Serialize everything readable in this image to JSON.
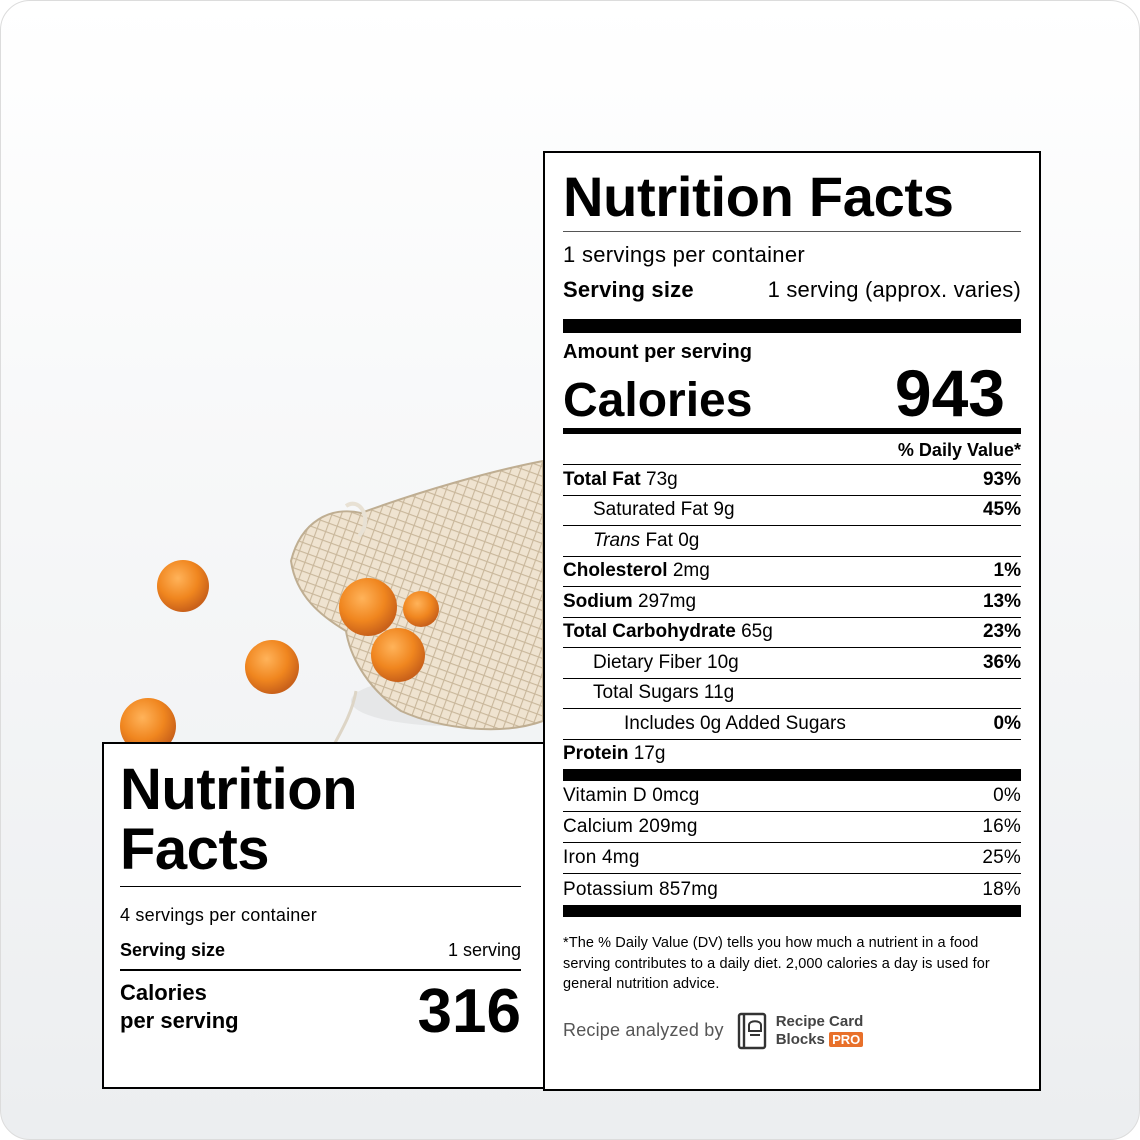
{
  "small_label": {
    "title": "Nutrition Facts",
    "servings_per_container": "4 servings per container",
    "serving_size_label": "Serving size",
    "serving_size_value": "1 serving",
    "calories_label_1": "Calories",
    "calories_label_2": "per serving",
    "calories_value": "316"
  },
  "big_label": {
    "title": "Nutrition Facts",
    "servings_per_container": "1 servings per container",
    "serving_size_label": "Serving size",
    "serving_size_value": "1 serving (approx. varies)",
    "amount_per_serving": "Amount per serving",
    "calories_label": "Calories",
    "calories_value": "943",
    "daily_value_header": "% Daily Value*",
    "nutrients": [
      {
        "name": "Total Fat",
        "amount": "73g",
        "pct": "93%"
      },
      {
        "name": "Saturated Fat",
        "amount": "9g",
        "pct": "45%"
      },
      {
        "name": "Trans",
        "name2": "Fat",
        "amount": "0g",
        "pct": ""
      },
      {
        "name": "Cholesterol",
        "amount": "2mg",
        "pct": "1%"
      },
      {
        "name": "Sodium",
        "amount": "297mg",
        "pct": "13%"
      },
      {
        "name": "Total Carbohydrate",
        "amount": "65g",
        "pct": "23%"
      },
      {
        "name": "Dietary Fiber",
        "amount": "10g",
        "pct": "36%"
      },
      {
        "name": "Total Sugars",
        "amount": "11g",
        "pct": ""
      },
      {
        "name": "Includes 0g Added Sugars",
        "amount": "",
        "pct": "0%"
      },
      {
        "name": "Protein",
        "amount": "17g",
        "pct": ""
      }
    ],
    "vitamins": [
      {
        "name": "Vitamin D 0mcg",
        "pct": "0%"
      },
      {
        "name": "Calcium 209mg",
        "pct": "16%"
      },
      {
        "name": "Iron 4mg",
        "pct": "25%"
      },
      {
        "name": "Potassium 857mg",
        "pct": "18%"
      }
    ],
    "footnote": "*The % Daily Value (DV) tells you how much a nutrient in a food serving contributes to a daily diet. 2,000 calories a day is used for general nutrition advice.",
    "analyzed_by": "Recipe analyzed by",
    "brand_line1": "Recipe Card",
    "brand_line2": "Blocks",
    "brand_badge": "PRO"
  },
  "colors": {
    "accent": "#e8702a",
    "apricot": "#f08a24"
  }
}
